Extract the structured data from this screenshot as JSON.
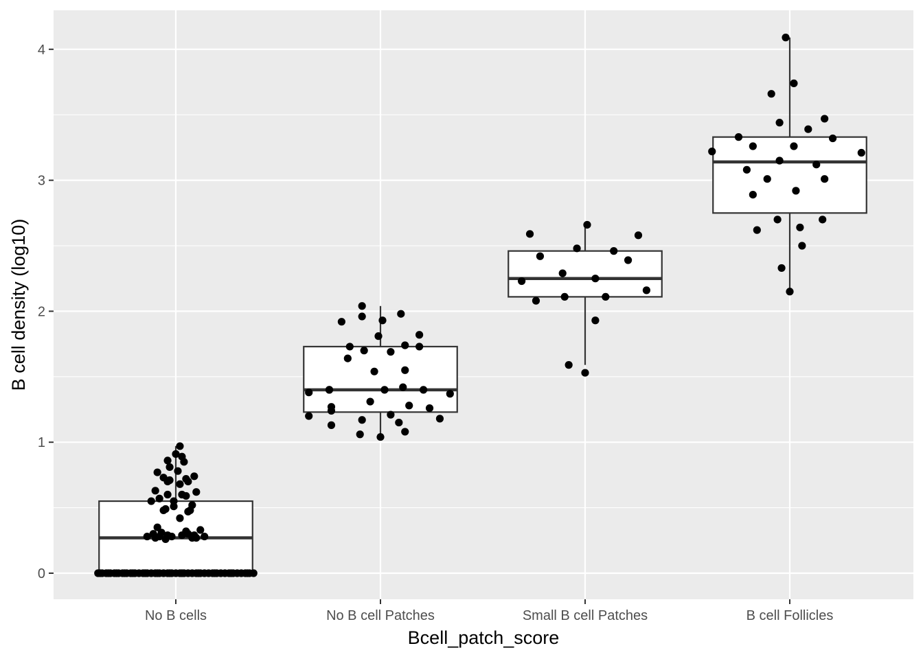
{
  "chart_data": {
    "type": "box",
    "title": "",
    "xlabel": "Bcell_patch_score",
    "ylabel": "B cell density (log10)",
    "categories": [
      "No B cells",
      "No B cell Patches",
      "Small B cell Patches",
      "B cell Follicles"
    ],
    "ylim": [
      -0.2,
      4.3
    ],
    "yticks": [
      0,
      1,
      2,
      3,
      4
    ],
    "grid": true,
    "legend": "none",
    "colors": {
      "panel_bg": "#ebebeb",
      "grid": "#ffffff",
      "box_fill": "#ffffff",
      "box_stroke": "#333333",
      "point": "#000000",
      "tick_text": "#4d4d4d",
      "axis_text": "#000000"
    },
    "boxes": [
      {
        "category": "No B cells",
        "lower_whisker": 0,
        "q1": 0,
        "median": 0.27,
        "q3": 0.55,
        "upper_whisker": 0.97
      },
      {
        "category": "No B cell Patches",
        "lower_whisker": 1.04,
        "q1": 1.23,
        "median": 1.4,
        "q3": 1.73,
        "upper_whisker": 2.04
      },
      {
        "category": "Small B cell Patches",
        "lower_whisker": 1.59,
        "q1": 2.11,
        "median": 2.25,
        "q3": 2.46,
        "upper_whisker": 2.66
      },
      {
        "category": "B cell Follicles",
        "lower_whisker": 2.15,
        "q1": 2.75,
        "median": 3.14,
        "q3": 3.33,
        "upper_whisker": 4.09
      }
    ],
    "points": [
      {
        "category": "No B cells",
        "values": [
          0.97,
          0.91,
          0.89,
          0.86,
          0.85,
          0.81,
          0.78,
          0.77,
          0.74,
          0.73,
          0.72,
          0.71,
          0.7,
          0.7,
          0.68,
          0.63,
          0.62,
          0.6,
          0.6,
          0.59,
          0.57,
          0.55,
          0.55,
          0.52,
          0.51,
          0.49,
          0.48,
          0.48,
          0.47,
          0.42,
          0.35,
          0.33,
          0.32,
          0.31,
          0.3,
          0.3,
          0.29,
          0.29,
          0.29,
          0.28,
          0.28,
          0.28,
          0.28,
          0.27,
          0.27,
          0.27,
          0.26,
          0,
          0,
          0,
          0,
          0,
          0,
          0,
          0,
          0,
          0,
          0,
          0,
          0,
          0,
          0,
          0,
          0,
          0,
          0,
          0,
          0,
          0,
          0,
          0,
          0,
          0,
          0,
          0,
          0,
          0,
          0,
          0,
          0,
          0,
          0,
          0,
          0,
          0,
          0,
          0,
          0,
          0,
          0,
          0,
          0,
          0,
          0,
          0,
          0,
          0,
          0,
          0
        ],
        "jitter": [
          0.02,
          0.0,
          0.03,
          -0.04,
          0.04,
          -0.03,
          0.01,
          -0.09,
          0.09,
          -0.06,
          0.05,
          -0.03,
          -0.04,
          0.06,
          0.02,
          -0.1,
          0.1,
          -0.04,
          0.03,
          0.05,
          -0.08,
          -0.12,
          -0.01,
          0.08,
          -0.01,
          -0.05,
          -0.06,
          0.07,
          0.06,
          0.02,
          -0.09,
          0.12,
          0.05,
          -0.07,
          -0.11,
          0.06,
          -0.04,
          0.03,
          0.09,
          -0.14,
          0.14,
          -0.08,
          -0.02,
          -0.1,
          0.08,
          0.1,
          -0.05,
          -0.38,
          -0.36,
          -0.34,
          -0.32,
          -0.3,
          -0.28,
          -0.26,
          -0.24,
          -0.22,
          -0.2,
          -0.18,
          -0.16,
          -0.14,
          -0.12,
          -0.1,
          -0.08,
          -0.06,
          -0.04,
          -0.02,
          0.0,
          0.02,
          0.04,
          0.06,
          0.08,
          0.1,
          0.12,
          0.14,
          0.16,
          0.18,
          0.2,
          0.22,
          0.24,
          0.26,
          0.28,
          0.3,
          0.32,
          0.34,
          0.36,
          0.38,
          -0.37,
          -0.33,
          -0.29,
          -0.25,
          -0.21,
          -0.15,
          -0.09,
          -0.03,
          0.03,
          0.11,
          0.19,
          0.27,
          0.35
        ]
      },
      {
        "category": "No B cell Patches",
        "values": [
          2.04,
          1.98,
          1.96,
          1.93,
          1.92,
          1.82,
          1.81,
          1.74,
          1.73,
          1.73,
          1.7,
          1.69,
          1.64,
          1.55,
          1.54,
          1.42,
          1.4,
          1.4,
          1.4,
          1.4,
          1.38,
          1.37,
          1.31,
          1.28,
          1.27,
          1.26,
          1.24,
          1.21,
          1.2,
          1.18,
          1.17,
          1.15,
          1.13,
          1.08,
          1.06,
          1.04
        ],
        "jitter": [
          -0.09,
          0.1,
          -0.09,
          0.01,
          -0.19,
          0.19,
          -0.01,
          0.12,
          -0.15,
          0.19,
          -0.08,
          0.05,
          -0.16,
          0.12,
          -0.03,
          0.11,
          -0.25,
          -0.25,
          0.02,
          0.21,
          -0.35,
          0.34,
          -0.05,
          0.14,
          -0.24,
          0.24,
          -0.24,
          0.05,
          -0.35,
          0.29,
          -0.09,
          0.09,
          -0.24,
          0.12,
          -0.1,
          0.0
        ]
      },
      {
        "category": "Small B cell Patches",
        "values": [
          2.66,
          2.59,
          2.58,
          2.48,
          2.46,
          2.42,
          2.39,
          2.29,
          2.25,
          2.23,
          2.16,
          2.11,
          2.11,
          2.08,
          1.93,
          1.59,
          1.53
        ],
        "jitter": [
          0.01,
          -0.27,
          0.26,
          -0.04,
          0.14,
          -0.22,
          0.21,
          -0.11,
          0.05,
          -0.31,
          0.3,
          -0.1,
          0.1,
          -0.24,
          0.05,
          -0.08,
          0.0
        ]
      },
      {
        "category": "B cell Follicles",
        "values": [
          4.09,
          3.74,
          3.66,
          3.47,
          3.44,
          3.39,
          3.33,
          3.32,
          3.26,
          3.26,
          3.22,
          3.21,
          3.15,
          3.12,
          3.08,
          3.01,
          3.01,
          2.92,
          2.89,
          2.7,
          2.7,
          2.64,
          2.62,
          2.5,
          2.33,
          2.15
        ],
        "jitter": [
          -0.02,
          0.02,
          -0.09,
          0.17,
          -0.05,
          0.09,
          -0.25,
          0.21,
          -0.18,
          0.02,
          -0.38,
          0.35,
          -0.05,
          0.13,
          -0.21,
          -0.11,
          0.17,
          0.03,
          -0.18,
          -0.06,
          0.16,
          0.05,
          -0.16,
          0.06,
          -0.04,
          0.0
        ]
      }
    ]
  }
}
